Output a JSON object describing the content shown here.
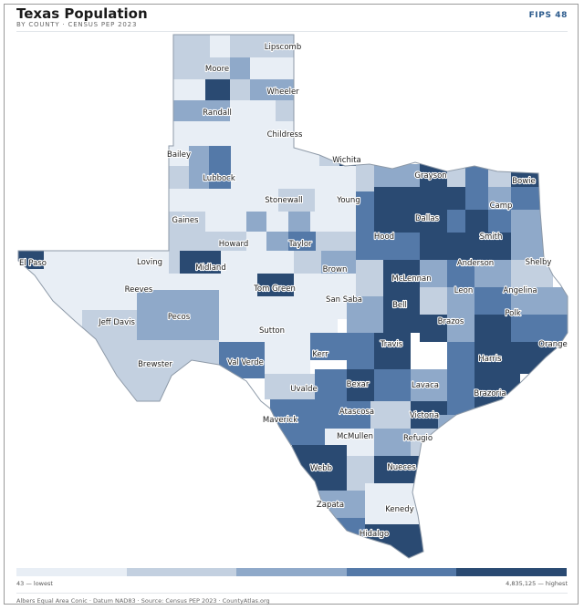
{
  "header": {
    "title": "Texas Population",
    "subtitle": "BY COUNTY · CENSUS PEP 2023",
    "badge": "FIPS 48"
  },
  "legend": {
    "low_label": "43 — lowest",
    "high_label": "4,835,125 — highest",
    "colors": [
      "#e8eef5",
      "#c3d0e0",
      "#8fa9c9",
      "#5479a8",
      "#2a4a72"
    ]
  },
  "footer": {
    "text": "Albers Equal Area Conic · Datum NAD83 · Source: Census PEP 2023 · CountyAtlas.org"
  },
  "map": {
    "outline_color": "#ffffff",
    "counties": [
      {
        "name": "Lipscomb",
        "level": 1
      },
      {
        "name": "Moore",
        "level": 2
      },
      {
        "name": "Wheeler",
        "level": 1
      },
      {
        "name": "Randall",
        "level": 4
      },
      {
        "name": "Childress",
        "level": 0
      },
      {
        "name": "Bailey",
        "level": 0
      },
      {
        "name": "Wichita",
        "level": 4
      },
      {
        "name": "Lubbock",
        "level": 3
      },
      {
        "name": "Grayson",
        "level": 4
      },
      {
        "name": "Bowie",
        "level": 3
      },
      {
        "name": "Stonewall",
        "level": 0
      },
      {
        "name": "Young",
        "level": 1
      },
      {
        "name": "Camp",
        "level": 3
      },
      {
        "name": "Gaines",
        "level": 1
      },
      {
        "name": "Dallas",
        "level": 4
      },
      {
        "name": "Howard",
        "level": 2
      },
      {
        "name": "Taylor",
        "level": 3
      },
      {
        "name": "Hood",
        "level": 3
      },
      {
        "name": "Smith",
        "level": 4
      },
      {
        "name": "El Paso",
        "level": 4
      },
      {
        "name": "Loving",
        "level": 0
      },
      {
        "name": "Midland",
        "level": 4
      },
      {
        "name": "Anderson",
        "level": 3
      },
      {
        "name": "Shelby",
        "level": 2
      },
      {
        "name": "Brown",
        "level": 2
      },
      {
        "name": "McLennan",
        "level": 4
      },
      {
        "name": "Reeves",
        "level": 1
      },
      {
        "name": "Tom Green",
        "level": 4
      },
      {
        "name": "San Saba",
        "level": 0
      },
      {
        "name": "Leon",
        "level": 2
      },
      {
        "name": "Angelina",
        "level": 3
      },
      {
        "name": "Pecos",
        "level": 2
      },
      {
        "name": "Bell",
        "level": 4
      },
      {
        "name": "Polk",
        "level": 3
      },
      {
        "name": "Jeff Davis",
        "level": 0
      },
      {
        "name": "Sutton",
        "level": 0
      },
      {
        "name": "Brazos",
        "level": 4
      },
      {
        "name": "Travis",
        "level": 4
      },
      {
        "name": "Orange",
        "level": 3
      },
      {
        "name": "Kerr",
        "level": 3
      },
      {
        "name": "Harris",
        "level": 4
      },
      {
        "name": "Brewster",
        "level": 1
      },
      {
        "name": "Val Verde",
        "level": 3
      },
      {
        "name": "Bexar",
        "level": 4
      },
      {
        "name": "Lavaca",
        "level": 2
      },
      {
        "name": "Uvalde",
        "level": 2
      },
      {
        "name": "Brazoria",
        "level": 4
      },
      {
        "name": "Atascosa",
        "level": 3
      },
      {
        "name": "Maverick",
        "level": 3
      },
      {
        "name": "Victoria",
        "level": 4
      },
      {
        "name": "McMullen",
        "level": 0
      },
      {
        "name": "Refugio",
        "level": 1
      },
      {
        "name": "Webb",
        "level": 4
      },
      {
        "name": "Nueces",
        "level": 4
      },
      {
        "name": "Zapata",
        "level": 1
      },
      {
        "name": "Kenedy",
        "level": 0
      },
      {
        "name": "Hidalgo",
        "level": 4
      }
    ]
  }
}
